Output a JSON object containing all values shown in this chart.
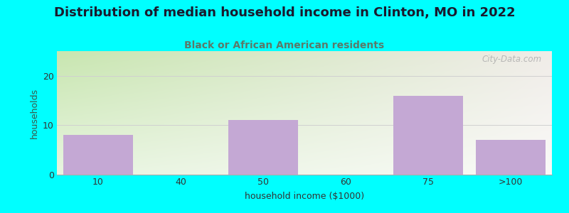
{
  "title": "Distribution of median household income in Clinton, MO in 2022",
  "subtitle": "Black or African American residents",
  "xlabel": "household income ($1000)",
  "ylabel": "households",
  "categories": [
    "10",
    "40",
    "50",
    "60",
    "75",
    ">100"
  ],
  "values": [
    8,
    0,
    11,
    0,
    16,
    7
  ],
  "bar_color": "#C4A8D4",
  "bar_edgecolor": "#C4A8D4",
  "ylim": [
    0,
    25
  ],
  "yticks": [
    0,
    10,
    20
  ],
  "bg_color_topleft": "#c8e6b0",
  "bg_color_topright": "#f0ece8",
  "bg_color_bottomleft": "#e8f5e0",
  "bg_color_bottomright": "#fafaf8",
  "outer_bg": "#00FFFF",
  "title_fontsize": 13,
  "subtitle_fontsize": 10,
  "axis_label_fontsize": 9,
  "watermark_text": "City-Data.com",
  "title_color": "#1a1a2e",
  "subtitle_color": "#5a7a6a",
  "ylabel_color": "#3a5a4a"
}
